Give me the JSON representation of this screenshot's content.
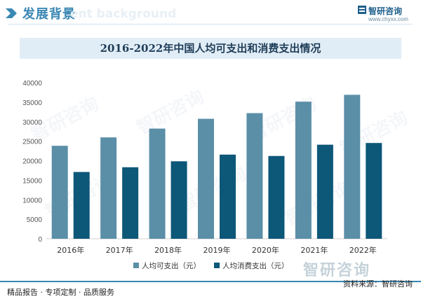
{
  "header": {
    "title": "发展背景",
    "ghost_text": "ent background"
  },
  "logo": {
    "name": "智研咨询",
    "url": "www.chyxx.com"
  },
  "chart_data": {
    "type": "bar",
    "title": "2016-2022年中国人均可支出和消费支出情况",
    "categories": [
      "2016年",
      "2017年",
      "2018年",
      "2019年",
      "2020年",
      "2021年",
      "2022年"
    ],
    "series": [
      {
        "name": "人均可支出（元）",
        "color": "#5b8fa8",
        "values": [
          23821,
          25974,
          28228,
          30733,
          32189,
          35128,
          36883
        ]
      },
      {
        "name": "人均消费支出（元）",
        "color": "#0d5778",
        "values": [
          17111,
          18322,
          19853,
          21559,
          21210,
          24100,
          24538
        ]
      }
    ],
    "ylim": [
      0,
      40000
    ],
    "yticks": [
      0,
      5000,
      10000,
      15000,
      20000,
      25000,
      30000,
      35000,
      40000
    ],
    "legend_position": "bottom",
    "grid": false
  },
  "watermark": "智研咨询",
  "footer": {
    "left": "精品报告 · 专项定制 · 品质服务",
    "source": "资料来源：智研咨询"
  }
}
